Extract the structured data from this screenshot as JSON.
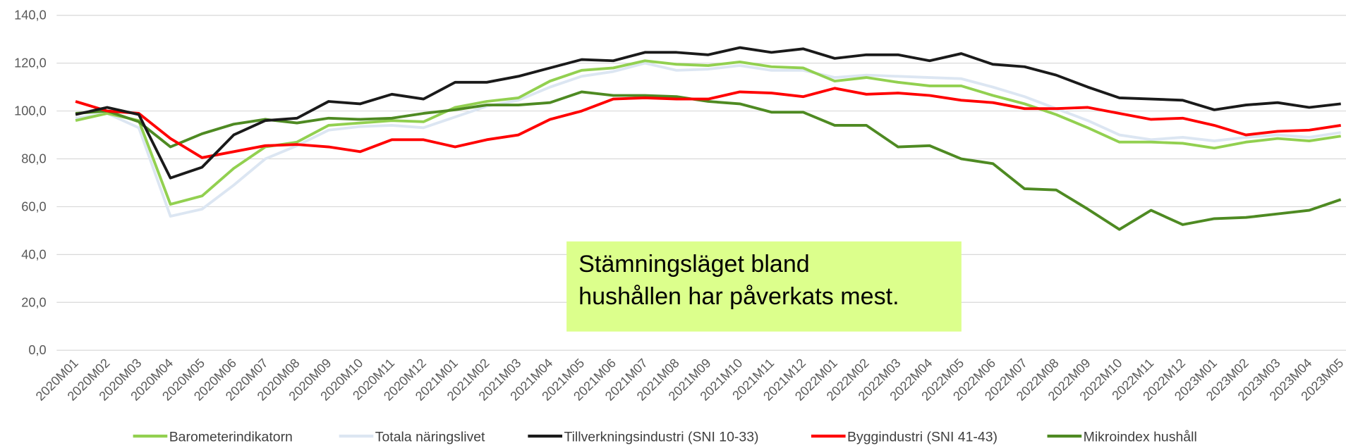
{
  "chart_data": {
    "type": "line",
    "categories": [
      "2020M01",
      "2020M02",
      "2020M03",
      "2020M04",
      "2020M05",
      "2020M06",
      "2020M07",
      "2020M08",
      "2020M09",
      "2020M10",
      "2020M11",
      "2020M12",
      "2021M01",
      "2021M02",
      "2021M03",
      "2021M04",
      "2021M05",
      "2021M06",
      "2021M07",
      "2021M08",
      "2021M09",
      "2021M10",
      "2021M11",
      "2021M12",
      "2022M01",
      "2022M02",
      "2022M03",
      "2022M04",
      "2022M05",
      "2022M06",
      "2022M07",
      "2022M08",
      "2022M09",
      "2022M10",
      "2022M11",
      "2022M12",
      "2023M01",
      "2023M02",
      "2023M03",
      "2023M04",
      "2023M05"
    ],
    "series": [
      {
        "name": "Barometerindikatorn",
        "color": "#92d050",
        "values": [
          96,
          99,
          96,
          61,
          64.5,
          76,
          85,
          87,
          94,
          95,
          96,
          95.5,
          101.5,
          104,
          105.5,
          112.5,
          117,
          118,
          121,
          119.5,
          119,
          120.5,
          118.5,
          118,
          112.5,
          114,
          112,
          110.5,
          110.5,
          106.5,
          103,
          98.5,
          93,
          87,
          87,
          86.5,
          84.5,
          87,
          88.5,
          87.5,
          89.5
        ]
      },
      {
        "name": "Totala näringslivet",
        "color": "#dce6f2",
        "values": [
          97,
          99,
          93,
          56,
          59,
          69,
          80,
          85.5,
          92,
          93.5,
          94,
          93,
          97.5,
          102,
          104.5,
          110,
          114.5,
          116.5,
          120,
          117,
          117.5,
          119,
          117,
          117,
          114,
          115,
          114.5,
          114,
          113.5,
          110,
          106,
          101,
          96,
          90,
          88,
          89,
          87.5,
          89,
          90,
          89,
          91
        ]
      },
      {
        "name": "Tillverkningsindustri (SNI 10-33)",
        "color": "#1a1a1a",
        "values": [
          98.5,
          101.5,
          98.5,
          72,
          76.5,
          90,
          96,
          97,
          104,
          103,
          107,
          105,
          112,
          112,
          114.5,
          118,
          121.5,
          121,
          124.5,
          124.5,
          123.5,
          126.5,
          124.5,
          126,
          122,
          123.5,
          123.5,
          121,
          124,
          119.5,
          118.5,
          115,
          110,
          105.5,
          105,
          104.5,
          100.5,
          102.5,
          103.5,
          101.5,
          103
        ]
      },
      {
        "name": "Byggindustri (SNI 41-43)",
        "color": "#ff0000",
        "values": [
          104,
          100,
          99,
          88.5,
          80.5,
          83,
          85.5,
          86,
          85,
          83,
          88,
          88,
          85,
          88,
          90,
          96.5,
          100,
          105,
          105.5,
          105,
          105,
          108,
          107.5,
          106,
          109.5,
          107,
          107.5,
          106.5,
          104.5,
          103.5,
          101,
          101,
          101.5,
          99,
          96.5,
          97,
          94,
          90,
          91.5,
          92,
          94
        ]
      },
      {
        "name": "Mikroindex hushåll",
        "color": "#4e8a22",
        "values": [
          99,
          100,
          95.5,
          85,
          90.5,
          94.5,
          96.5,
          95,
          97,
          96.5,
          97,
          99,
          100.5,
          102.5,
          102.5,
          103.5,
          108,
          106.5,
          106.5,
          106,
          104,
          103,
          99.5,
          99.5,
          94,
          94,
          85,
          85.5,
          80,
          78,
          67.5,
          67,
          59,
          50.5,
          58.5,
          52.5,
          55,
          55.5,
          57,
          58.5,
          63
        ]
      }
    ],
    "ylim": [
      0,
      140
    ],
    "yticks": [
      {
        "value": 0,
        "label": "0,0"
      },
      {
        "value": 20,
        "label": "20,0"
      },
      {
        "value": 40,
        "label": "40,0"
      },
      {
        "value": 60,
        "label": "60,0"
      },
      {
        "value": 80,
        "label": "80,0"
      },
      {
        "value": 100,
        "label": "100,0"
      },
      {
        "value": 120,
        "label": "120,0"
      },
      {
        "value": 140,
        "label": "140,0"
      }
    ],
    "grid": true,
    "legend": "bottom",
    "annotation": {
      "lines": [
        "Stämningsläget bland",
        "hushållen har påverkats mest."
      ],
      "background": "#dcff8c"
    }
  }
}
